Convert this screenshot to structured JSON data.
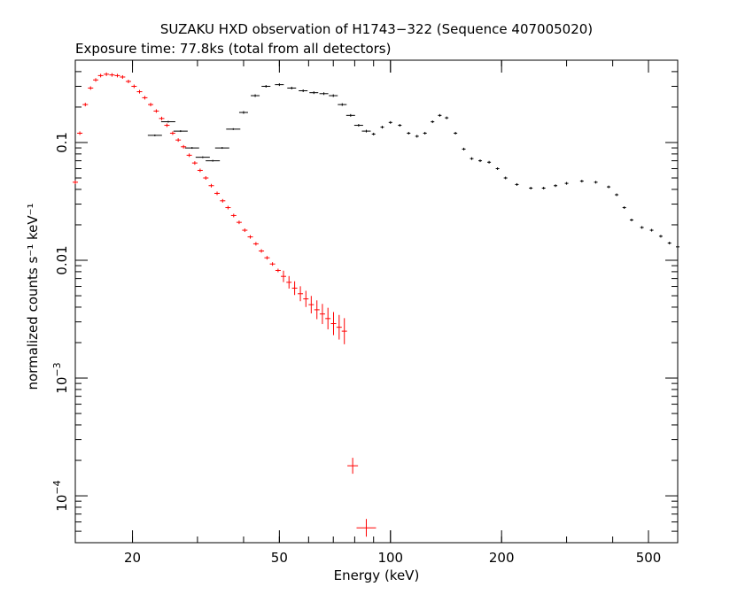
{
  "chart_data": {
    "type": "scatter",
    "title": "SUZAKU HXD observation of H1743−322 (Sequence 407005020)",
    "subtitle": "Exposure time: 77.8ks (total from all detectors)",
    "xlabel": "Energy (keV)",
    "ylabel": "normalized counts s⁻¹ keV⁻¹",
    "xscale": "log",
    "yscale": "log",
    "xlim": [
      14,
      600
    ],
    "ylim": [
      4e-05,
      0.5
    ],
    "grid": false,
    "x_ticks": [
      {
        "value": 20,
        "label": "20"
      },
      {
        "value": 50,
        "label": "50"
      },
      {
        "value": 100,
        "label": "100"
      },
      {
        "value": 200,
        "label": "200"
      },
      {
        "value": 500,
        "label": "500"
      }
    ],
    "y_ticks": [
      {
        "value": 0.1,
        "label": "0.1"
      },
      {
        "value": 0.01,
        "label": "0.01"
      },
      {
        "value": 0.001,
        "label": "10",
        "exp": "−3"
      },
      {
        "value": 0.0001,
        "label": "10",
        "exp": "−4"
      }
    ],
    "series": [
      {
        "color": "#ff0000",
        "points": [
          [
            14.0,
            0.046
          ],
          [
            14.4,
            0.12
          ],
          [
            14.9,
            0.21
          ],
          [
            15.4,
            0.29
          ],
          [
            15.9,
            0.34
          ],
          [
            16.4,
            0.37
          ],
          [
            17.0,
            0.38
          ],
          [
            17.6,
            0.375
          ],
          [
            18.2,
            0.37
          ],
          [
            18.8,
            0.36
          ],
          [
            19.5,
            0.33
          ],
          [
            20.2,
            0.3
          ],
          [
            20.9,
            0.27
          ],
          [
            21.6,
            0.24
          ],
          [
            22.4,
            0.21
          ],
          [
            23.2,
            0.185
          ],
          [
            24.0,
            0.16
          ],
          [
            24.8,
            0.14
          ],
          [
            25.7,
            0.12
          ],
          [
            26.6,
            0.105
          ],
          [
            27.5,
            0.092
          ],
          [
            28.5,
            0.078
          ],
          [
            29.5,
            0.067
          ],
          [
            30.5,
            0.058
          ],
          [
            31.6,
            0.05
          ],
          [
            32.7,
            0.043
          ],
          [
            33.9,
            0.037
          ],
          [
            35.1,
            0.032
          ],
          [
            36.3,
            0.028
          ],
          [
            37.6,
            0.024
          ],
          [
            38.9,
            0.021
          ],
          [
            40.3,
            0.018
          ],
          [
            41.7,
            0.0158
          ],
          [
            43.2,
            0.0138
          ],
          [
            44.7,
            0.012
          ],
          [
            46.3,
            0.0105
          ],
          [
            47.9,
            0.0093
          ],
          [
            49.6,
            0.0082
          ],
          [
            51.3,
            0.0073
          ],
          [
            53.1,
            0.0065
          ],
          [
            55.0,
            0.0058
          ],
          [
            57.0,
            0.0052
          ],
          [
            59.0,
            0.0047
          ],
          [
            61.0,
            0.0042
          ],
          [
            63.2,
            0.0038
          ],
          [
            65.4,
            0.0035
          ],
          [
            67.7,
            0.0032
          ],
          [
            70.1,
            0.0029
          ],
          [
            72.6,
            0.0027
          ],
          [
            75.0,
            0.0025
          ],
          [
            79.0,
            0.00018
          ],
          [
            86.0,
            5.35e-05
          ]
        ]
      },
      {
        "color": "#000000",
        "points": [
          [
            23.0,
            0.115
          ],
          [
            25.0,
            0.15
          ],
          [
            27.0,
            0.125
          ],
          [
            29.0,
            0.09
          ],
          [
            31.0,
            0.075
          ],
          [
            33.0,
            0.07
          ],
          [
            35.0,
            0.09
          ],
          [
            37.5,
            0.13
          ],
          [
            40.0,
            0.18
          ],
          [
            43.0,
            0.25
          ],
          [
            46.0,
            0.3
          ],
          [
            50.0,
            0.31
          ],
          [
            54.0,
            0.29
          ],
          [
            58.0,
            0.275
          ],
          [
            62.0,
            0.265
          ],
          [
            66.0,
            0.26
          ],
          [
            70.0,
            0.25
          ],
          [
            74.0,
            0.21
          ],
          [
            78.0,
            0.17
          ],
          [
            82.0,
            0.14
          ],
          [
            86.0,
            0.125
          ],
          [
            90.0,
            0.118
          ],
          [
            95.0,
            0.135
          ],
          [
            100.0,
            0.148
          ],
          [
            106.0,
            0.14
          ],
          [
            112.0,
            0.12
          ],
          [
            118.0,
            0.113
          ],
          [
            124.0,
            0.12
          ],
          [
            130.0,
            0.15
          ],
          [
            136.0,
            0.17
          ],
          [
            142.0,
            0.162
          ],
          [
            150.0,
            0.12
          ],
          [
            158.0,
            0.088
          ],
          [
            166.0,
            0.073
          ],
          [
            175.0,
            0.07
          ],
          [
            185.0,
            0.068
          ],
          [
            195.0,
            0.06
          ],
          [
            205.0,
            0.05
          ],
          [
            220.0,
            0.044
          ],
          [
            240.0,
            0.041
          ],
          [
            260.0,
            0.041
          ],
          [
            280.0,
            0.043
          ],
          [
            300.0,
            0.045
          ],
          [
            330.0,
            0.047
          ],
          [
            360.0,
            0.046
          ],
          [
            390.0,
            0.042
          ],
          [
            410.0,
            0.036
          ],
          [
            430.0,
            0.028
          ],
          [
            450.0,
            0.022
          ],
          [
            480.0,
            0.019
          ],
          [
            510.0,
            0.018
          ],
          [
            540.0,
            0.016
          ],
          [
            570.0,
            0.014
          ],
          [
            600.0,
            0.013
          ]
        ]
      }
    ]
  }
}
